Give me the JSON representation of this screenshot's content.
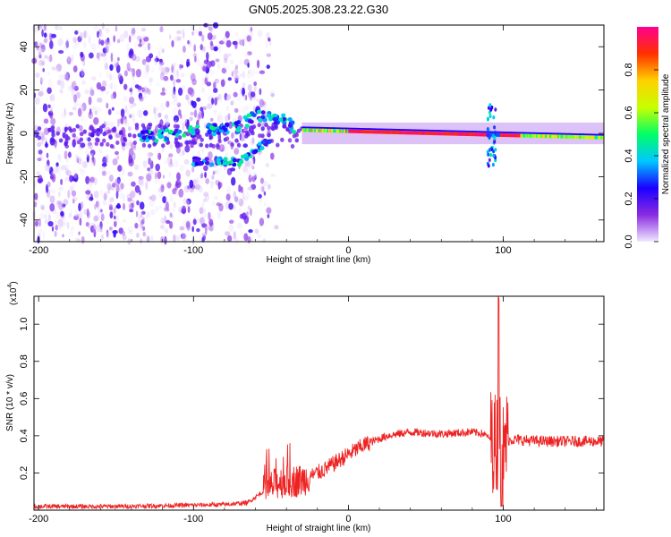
{
  "title": "GN05.2025.308.23.22.G30",
  "chart_data": [
    {
      "type": "heatmap",
      "xlabel": "Height of straight line (km)",
      "ylabel": "Frequency (Hz)",
      "xlim": [
        -203,
        165
      ],
      "ylim": [
        -50,
        50
      ],
      "xticks": [
        "-200",
        "-100",
        "0",
        "100"
      ],
      "xtick_values": [
        -200,
        -100,
        0,
        100
      ],
      "yticks": [
        "40",
        "20",
        "0",
        "-20",
        "-40"
      ],
      "ytick_values": [
        40,
        20,
        0,
        -20,
        -40
      ],
      "colorbar": {
        "label": "Normalized spectral amplitude",
        "range": [
          0,
          1
        ],
        "ticks": [
          "0.0",
          "0.2",
          "0.4",
          "0.6",
          "0.8"
        ],
        "tick_values": [
          0,
          0.2,
          0.4,
          0.6,
          0.8
        ],
        "colors": [
          "#f0e8ff",
          "#8a2be2",
          "#1a00ff",
          "#00c8ff",
          "#00ff66",
          "#c8ff00",
          "#ffd000",
          "#ff3000",
          "#ff0090"
        ]
      },
      "features": {
        "noise_region_x": [
          -203,
          -65
        ],
        "main_line": {
          "x": [
            -30,
            165
          ],
          "freq": [
            1.5,
            -2
          ]
        },
        "upper_branch": {
          "x": [
            -135,
            -70,
            -60,
            -45,
            -35
          ],
          "freq": [
            -2,
            3,
            9,
            7,
            3
          ]
        },
        "lower_branch": {
          "x": [
            -100,
            -80,
            -70,
            -60,
            -50
          ],
          "freq": [
            -13,
            -13,
            -13,
            -8,
            -2
          ]
        },
        "spike_x": 92
      }
    },
    {
      "type": "line",
      "xlabel": "Height of straight line (km)",
      "ylabel": "SNR (10 * v/v)",
      "scale_label": "(x10",
      "scale_exp": "4",
      "ylim": [
        0,
        1.15
      ],
      "xlim": [
        -203,
        165
      ],
      "xticks": [
        "-200",
        "-100",
        "0",
        "100"
      ],
      "xtick_values": [
        -200,
        -100,
        0,
        100
      ],
      "yticks": [
        "1.0",
        "0.8",
        "0.6",
        "0.4",
        "0.2"
      ],
      "ytick_values": [
        1.0,
        0.8,
        0.6,
        0.4,
        0.2
      ],
      "color": "#ee2222",
      "envelope": {
        "x": [
          -203,
          -150,
          -80,
          -65,
          -55,
          -45,
          -30,
          -15,
          0,
          10,
          25,
          40,
          60,
          80,
          88,
          92,
          95,
          105,
          125,
          165
        ],
        "y": [
          0.02,
          0.02,
          0.03,
          0.04,
          0.1,
          0.15,
          0.16,
          0.22,
          0.3,
          0.35,
          0.4,
          0.42,
          0.41,
          0.42,
          0.41,
          0.38,
          0.36,
          0.38,
          0.37,
          0.37
        ]
      }
    }
  ]
}
